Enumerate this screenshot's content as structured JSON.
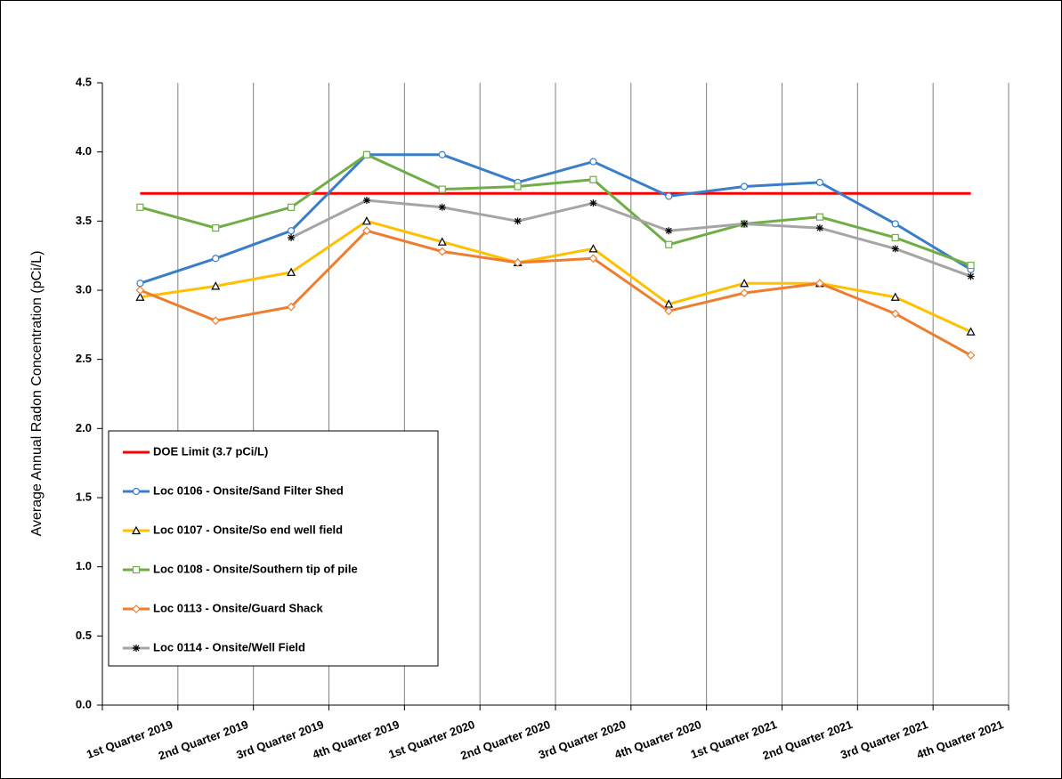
{
  "chart_data": {
    "type": "line",
    "y_label": "Average Annual Radon Concentration (pCi/L)",
    "categories": [
      "1st Quarter 2019",
      "2nd Quarter 2019",
      "3rd Quarter 2019",
      "4th Quarter 2019",
      "1st Quarter 2020",
      "2nd Quarter 2020",
      "3rd Quarter 2020",
      "4th Quarter 2020",
      "1st Quarter 2021",
      "2nd Quarter 2021",
      "3rd Quarter 2021",
      "4th Quarter 2021"
    ],
    "series": [
      {
        "name": "DOE Limit (3.7 pCi/L)",
        "color": "#ff0000",
        "marker": "none",
        "values": [
          3.7,
          3.7,
          3.7,
          3.7,
          3.7,
          3.7,
          3.7,
          3.7,
          3.7,
          3.7,
          3.7,
          3.7
        ]
      },
      {
        "name": "Loc 0106 - Onsite/Sand Filter Shed",
        "color": "#3a7dc9",
        "marker": "circle",
        "values": [
          3.05,
          3.23,
          3.43,
          3.98,
          3.98,
          3.78,
          3.93,
          3.68,
          3.75,
          3.78,
          3.48,
          3.15
        ]
      },
      {
        "name": "Loc 0107 - Onsite/So end well field",
        "color": "#ffc000",
        "marker": "triangle",
        "values": [
          2.95,
          3.03,
          3.13,
          3.5,
          3.35,
          3.2,
          3.3,
          2.9,
          3.05,
          3.05,
          2.95,
          2.7
        ]
      },
      {
        "name": "Loc 0108 - Onsite/Southern tip of pile",
        "color": "#70ad47",
        "marker": "square",
        "values": [
          3.6,
          3.45,
          3.6,
          3.98,
          3.73,
          3.75,
          3.8,
          3.33,
          3.48,
          3.53,
          3.38,
          3.18
        ]
      },
      {
        "name": "Loc 0113 - Onsite/Guard Shack",
        "color": "#ed7d31",
        "marker": "diamond",
        "values": [
          3.0,
          2.78,
          2.88,
          3.43,
          3.28,
          3.2,
          3.23,
          2.85,
          2.98,
          3.05,
          2.83,
          2.53
        ]
      },
      {
        "name": "Loc 0114 - Onsite/Well Field",
        "color": "#a5a5a5",
        "marker": "asterisk",
        "values": [
          null,
          null,
          3.38,
          3.65,
          3.6,
          3.5,
          3.63,
          3.43,
          3.48,
          3.45,
          3.3,
          3.1
        ]
      }
    ],
    "ylim": [
      0,
      4.5
    ],
    "yticks": [
      {
        "value": 0,
        "label": "0.0"
      },
      0.5,
      {
        "value": 1,
        "label": "1.0"
      },
      1.5,
      {
        "value": 2,
        "label": "2.0"
      },
      2.5,
      {
        "value": 3,
        "label": "3.0"
      },
      3.5,
      {
        "value": 4,
        "label": "4.0"
      },
      4.5
    ],
    "grid": "vertical",
    "legend": "lower left"
  }
}
